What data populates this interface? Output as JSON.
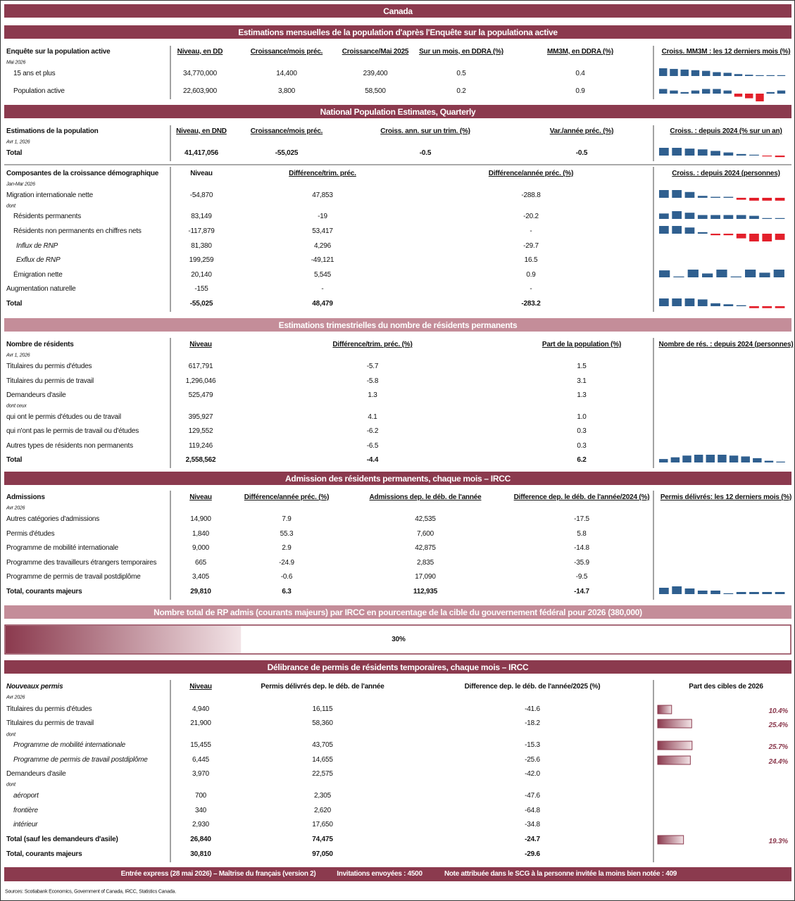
{
  "title": "Canada",
  "sections": [
    {
      "title": "Estimations mensuelles de la population d'après l'Enquête sur la populationa active",
      "tables": [
        {
          "header": [
            "Enquête sur la population active",
            "Niveau, en DD",
            "Croissance/mois préc.",
            "Croissance/Mai 2025",
            "Sur un mois, en DDRA (%)",
            "MM3M, en DDRA (%)",
            "Croiss. MM3M : les 12 derniers mois (%)"
          ],
          "note": "Mai 2026",
          "rows": [
            [
              "15 ans et plus",
              "34,770,000",
              "14,400",
              "239,400",
              "0.5",
              "0.4"
            ],
            [
              "Population active",
              "22,603,900",
              "3,800",
              "58,500",
              "0.2",
              "0.9"
            ]
          ],
          "sparklines": [
            [
              12,
              11,
              10,
              9,
              8,
              6,
              5,
              3,
              2,
              1,
              1,
              1
            ],
            [
              3,
              2,
              1,
              2,
              3,
              3,
              2,
              -2,
              -3,
              -5,
              1,
              2
            ]
          ]
        }
      ]
    },
    {
      "title": "National Population Estimates, Quarterly",
      "tables": [
        {
          "header": [
            "Estimations de la population",
            "Niveau, en DND",
            "Croissance/mois préc.",
            "Croiss. ann. sur un trim. (%)",
            "Var./année préc. (%)",
            "Croiss. : depuis 2024 (% sur un an)"
          ],
          "note": "Avr 1, 2026",
          "rows": [
            [
              "Total",
              "41,417,056",
              "-55,025",
              "-0.5",
              "-0.5"
            ]
          ],
          "sparklines": [
            [
              10,
              10,
              9,
              8,
              6,
              4,
              2,
              1,
              -1,
              -2
            ]
          ]
        },
        {
          "header": [
            "Composantes de la croissance démographique",
            "Niveau",
            "Différence/trim. préc.",
            "Différence/année préc. (%)",
            "Croiss. : depuis 2024 (personnes)"
          ],
          "note": "Jan-Mar 2026",
          "rows": [
            [
              "Migration internationale nette",
              "-54,870",
              "47,853",
              "-288.8"
            ],
            [
              "dont"
            ],
            [
              "Résidents permanents",
              "83,149",
              "-19",
              "-20.2"
            ],
            [
              "Résidents non permanents en chiffres nets",
              "-117,879",
              "53,417",
              "-"
            ],
            [
              "Influx de RNP",
              "81,380",
              "4,296",
              "-29.7"
            ],
            [
              "Exflux de RNP",
              "199,259",
              "-49,121",
              "16.5"
            ],
            [
              "Émigration nette",
              "20,140",
              "5,545",
              "0.9"
            ],
            [
              "Augmentation naturelle",
              "-155",
              "-",
              "-"
            ],
            [
              "Total",
              "-55,025",
              "48,479",
              "-283.2"
            ]
          ],
          "sparklines": [
            [
              8,
              8,
              6,
              2,
              1,
              1,
              -2,
              -3,
              -3,
              -3
            ],
            null,
            [
              7,
              10,
              8,
              5,
              5,
              5,
              5,
              4,
              1,
              1
            ],
            [
              5,
              5,
              4,
              1,
              -1,
              -1,
              -3,
              -5,
              -5,
              -4
            ],
            null,
            null,
            [
              9,
              1,
              10,
              5,
              10,
              1,
              10,
              6,
              10
            ],
            null,
            [
              8,
              8,
              8,
              7,
              3,
              2,
              1,
              -2,
              -2,
              -2
            ]
          ]
        }
      ]
    },
    {
      "title": "Estimations trimestrielles du nombre de résidents permanents",
      "tables": [
        {
          "header": [
            "Nombre de résidents",
            "Niveau",
            "Différence/trim. préc. (%)",
            "Part de la population (%)",
            "Nombre de rés. : depuis 2024 (personnes)"
          ],
          "note": "Avr 1, 2026",
          "rows": [
            [
              "Titulaires du permis d'études",
              "617,791",
              "-5.7",
              "1.5"
            ],
            [
              "Titulaires du permis de travail",
              "1,296,046",
              "-5.8",
              "3.1"
            ],
            [
              "Demandeurs d'asile",
              "525,479",
              "1.3",
              "1.3"
            ],
            [
              "dont ceux"
            ],
            [
              "qui ont le permis d'études ou de travail",
              "395,927",
              "4.1",
              "1.0"
            ],
            [
              "qui n'ont pas le permis de travail ou d'études",
              "129,552",
              "-6.2",
              "0.3"
            ],
            [
              "Autres types de résidents non permanents",
              "119,246",
              "-6.5",
              "0.3"
            ],
            [
              "Total",
              "2,558,562",
              "-4.4",
              "6.2"
            ]
          ],
          "sparklines": [
            null,
            null,
            null,
            null,
            null,
            null,
            null,
            [
              4,
              6,
              8,
              9,
              9,
              9,
              8,
              7,
              5,
              2,
              1
            ]
          ]
        }
      ]
    },
    {
      "title": "Admission des résidents permanents, chaque mois – IRCC",
      "tables": [
        {
          "header": [
            "Admissions",
            "Niveau",
            "Différence/année préc. (%)",
            "Admissions dep. le déb. de l'année",
            "Difference dep. le déb. de l'année/2024 (%)",
            "Permis délivrés: les 12 derniers mois (%)"
          ],
          "note": "Avr 2026",
          "rows": [
            [
              "Autres catégories d'admissions",
              "14,900",
              "7.9",
              "42,535",
              "-17.5"
            ],
            [
              "Permis d'études",
              "1,840",
              "55.3",
              "7,600",
              "5.8"
            ],
            [
              "Programme de mobilité internationale",
              "9,000",
              "2.9",
              "42,875",
              "-14.8"
            ],
            [
              "Programme des travailleurs étrangers temporaires",
              "665",
              "-24.9",
              "2,835",
              "-35.9"
            ],
            [
              "Programme de permis de travail postdiplôme",
              "3,405",
              "-0.6",
              "17,090",
              "-9.5"
            ],
            [
              "Total, courants majeurs",
              "29,810",
              "6.3",
              "112,935",
              "-14.7"
            ]
          ],
          "sparklines": [
            null,
            null,
            null,
            null,
            null,
            [
              9,
              11,
              8,
              5,
              5,
              1,
              3,
              3,
              3,
              3
            ]
          ]
        }
      ]
    },
    {
      "title": "Nombre total de RP admis (courants majeurs) par IRCC en pourcentage de la cible du gouvernement fédéral pour 2026 (380,000)",
      "progress": {
        "value": 30,
        "label": "30%"
      }
    },
    {
      "title": "Délibrance de permis de résidents temporaires, chaque mois – IRCC",
      "tables": [
        {
          "header": [
            "Nouveaux permis",
            "Niveau",
            "Permis délivrés dep. le déb. de l'année",
            "Difference dep. le déb. de l'année/2025 (%)",
            "Part des cibles de 2026"
          ],
          "note": "Avr 2026",
          "rows": [
            [
              "Titulaires du permis d'études",
              "4,940",
              "16,115",
              "-41.6"
            ],
            [
              "Titulaires du permis de travail",
              "21,900",
              "58,360",
              "-18.2"
            ],
            [
              "dont"
            ],
            [
              "Programme de mobilité internationale",
              "15,455",
              "43,705",
              "-15.3"
            ],
            [
              "Programme de permis de travail postdiplôme",
              "6,445",
              "14,655",
              "-25.6"
            ],
            [
              "Demandeurs d'asile",
              "3,970",
              "22,575",
              "-42.0"
            ],
            [
              "dont"
            ],
            [
              "aéroport",
              "700",
              "2,305",
              "-47.6"
            ],
            [
              "frontière",
              "340",
              "2,620",
              "-64.8"
            ],
            [
              "intérieur",
              "2,930",
              "17,650",
              "-34.8"
            ],
            [
              "Total (sauf les demandeurs d'asile)",
              "26,840",
              "74,475",
              "-24.7"
            ],
            [
              "Total, courants majeurs",
              "30,810",
              "97,050",
              "-29.6"
            ]
          ],
          "targets": [
            {
              "value": 10.4,
              "label": "10.4%"
            },
            {
              "value": 25.4,
              "label": "25.4%"
            },
            null,
            {
              "value": 25.7,
              "label": "25.7%"
            },
            {
              "value": 24.4,
              "label": "24.4%"
            },
            null,
            null,
            null,
            null,
            null,
            {
              "value": 19.3,
              "label": "19.3%"
            },
            null
          ]
        }
      ]
    }
  ],
  "footer": [
    "Entrée express (28 mai 2026) – Maîtrise du français (version 2)",
    "Invitations envoyées : 4500",
    "Note attribuée dans le SCG à la personne invitée la moins bien notée : 409"
  ],
  "sources": "Sources: Scotiabank Economics, Government of Canada, IRCC, Statistics Canada."
}
